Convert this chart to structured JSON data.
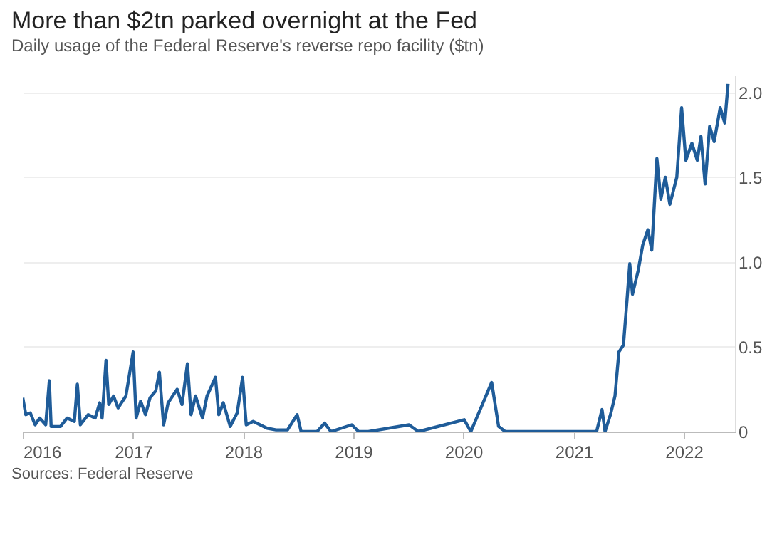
{
  "chart_data": {
    "type": "line",
    "title": "More than $2tn parked overnight at the Fed",
    "subtitle": "Daily usage of the Federal Reserve's reverse repo facility ($tn)",
    "annotations": [
      "Sources: Federal Reserve"
    ],
    "x": [
      "2016-01-01",
      "2016-01-11",
      "2016-01-26",
      "2016-02-11",
      "2016-02-26",
      "2016-03-17",
      "2016-03-29",
      "2016-04-04",
      "2016-05-05",
      "2016-05-27",
      "2016-06-20",
      "2016-06-30",
      "2016-07-10",
      "2016-08-05",
      "2016-08-28",
      "2016-09-12",
      "2016-09-20",
      "2016-10-03",
      "2016-10-12",
      "2016-10-28",
      "2016-11-12",
      "2016-12-08",
      "2017-01-01",
      "2017-01-11",
      "2017-01-26",
      "2017-02-11",
      "2017-02-26",
      "2017-03-17",
      "2017-03-29",
      "2017-04-12",
      "2017-04-27",
      "2017-05-27",
      "2017-06-12",
      "2017-06-30",
      "2017-07-12",
      "2017-07-27",
      "2017-08-19",
      "2017-09-03",
      "2017-10-01",
      "2017-10-12",
      "2017-10-27",
      "2017-11-19",
      "2017-12-12",
      "2017-12-30",
      "2018-01-11",
      "2018-02-03",
      "2018-02-26",
      "2018-03-21",
      "2018-04-20",
      "2018-05-28",
      "2018-06-29",
      "2018-07-12",
      "2018-09-03",
      "2018-09-28",
      "2018-10-19",
      "2018-12-27",
      "2019-01-19",
      "2019-02-20",
      "2019-07-05",
      "2019-08-05",
      "2020-01-04",
      "2020-01-26",
      "2020-04-04",
      "2020-04-27",
      "2020-05-19",
      "2021-03-18",
      "2021-04-05",
      "2021-04-15",
      "2021-05-03",
      "2021-05-18",
      "2021-05-31",
      "2021-06-15",
      "2021-06-27",
      "2021-07-06",
      "2021-07-15",
      "2021-08-03",
      "2021-08-18",
      "2021-09-04",
      "2021-09-17",
      "2021-10-04",
      "2021-10-17",
      "2021-11-01",
      "2021-11-16",
      "2021-12-09",
      "2021-12-25",
      "2022-01-08",
      "2022-01-28",
      "2022-02-15",
      "2022-02-27",
      "2022-03-13",
      "2022-03-28",
      "2022-04-12",
      "2022-05-02",
      "2022-05-17",
      "2022-05-28"
    ],
    "series": [
      {
        "color": "#1f5c99",
        "values": [
          0.2,
          0.1,
          0.11,
          0.04,
          0.08,
          0.04,
          0.3,
          0.03,
          0.03,
          0.08,
          0.06,
          0.28,
          0.04,
          0.1,
          0.08,
          0.17,
          0.08,
          0.42,
          0.16,
          0.21,
          0.14,
          0.21,
          0.47,
          0.08,
          0.18,
          0.1,
          0.2,
          0.24,
          0.35,
          0.04,
          0.17,
          0.25,
          0.16,
          0.4,
          0.1,
          0.21,
          0.08,
          0.21,
          0.32,
          0.1,
          0.17,
          0.03,
          0.11,
          0.32,
          0.04,
          0.06,
          0.04,
          0.02,
          0.01,
          0.01,
          0.1,
          0,
          0,
          0.05,
          0,
          0.04,
          0,
          0,
          0.04,
          0,
          0.07,
          0,
          0.29,
          0.03,
          0,
          0,
          0.13,
          0,
          0.1,
          0.21,
          0.47,
          0.51,
          0.78,
          0.99,
          0.81,
          0.95,
          1.1,
          1.19,
          1.07,
          1.61,
          1.37,
          1.5,
          1.34,
          1.5,
          1.91,
          1.6,
          1.7,
          1.6,
          1.74,
          1.46,
          1.8,
          1.71,
          1.91,
          1.82,
          2.05
        ]
      }
    ],
    "xlim": [
      "2016-01-01",
      "2022-06-20"
    ],
    "xticks": [
      "2016",
      "2017",
      "2018",
      "2019",
      "2020",
      "2021",
      "2022"
    ],
    "ylim": [
      0,
      2.1
    ],
    "yticks": [
      0,
      {
        "value": 0.5,
        "label": "0.5"
      },
      {
        "value": 1,
        "label": "1.0"
      },
      {
        "value": 1.5,
        "label": "1.5"
      },
      {
        "value": 2,
        "label": "2.0"
      }
    ],
    "grid": "y",
    "marker": "none",
    "line_style": "solid"
  }
}
